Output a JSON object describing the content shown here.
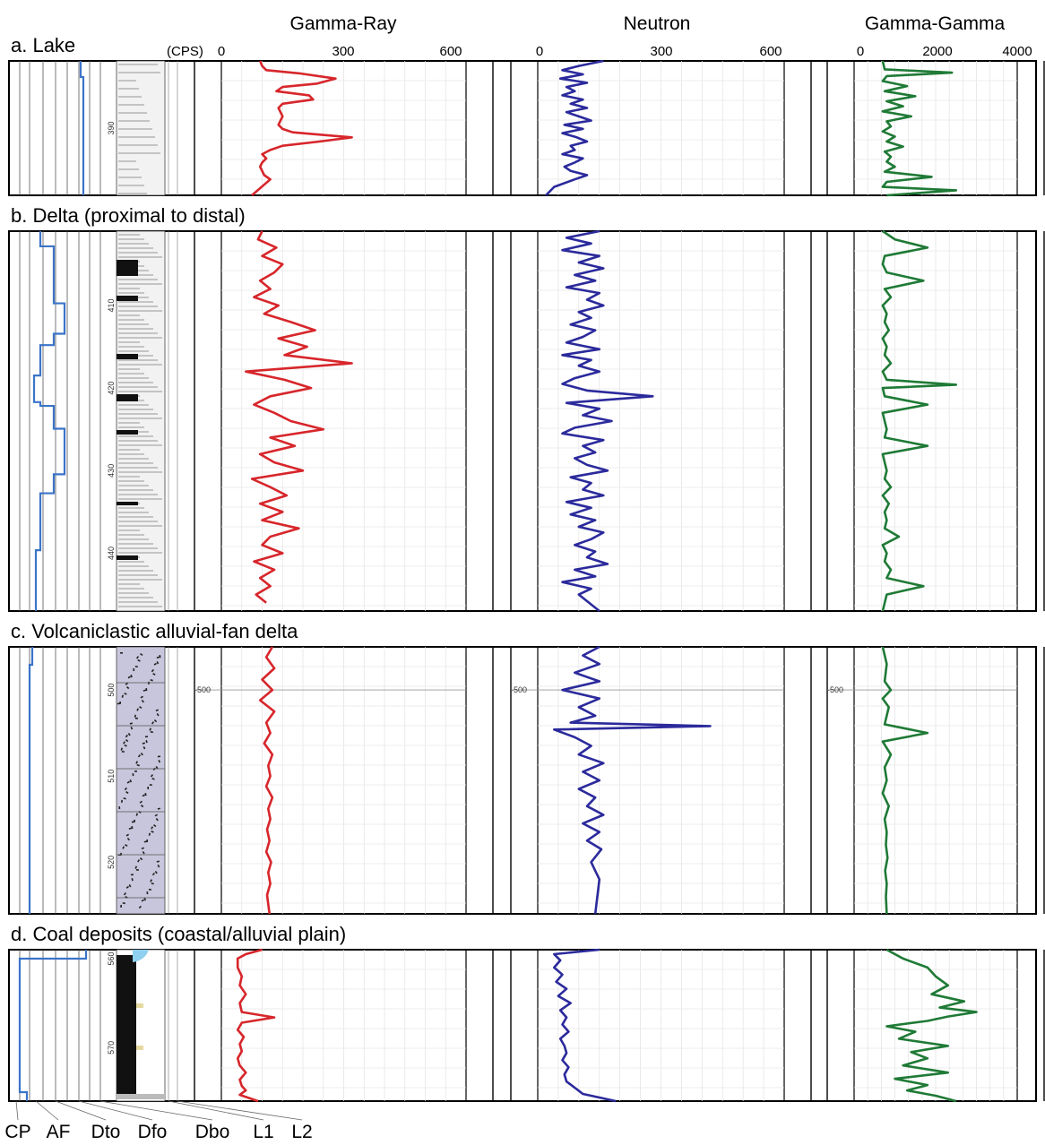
{
  "figure_type": "multi-panel well-log composite",
  "colors": {
    "gamma_ray": "#d7262b",
    "neutron": "#2b2a9c",
    "gamma_gamma": "#1f7a36",
    "facies_curve": "#3b74c8",
    "volcanic_fill": "#c7c6dc",
    "coal_fill": "#111111",
    "water_cap": "#8fd0ee"
  },
  "track_headers": {
    "cps_label": "(CPS)",
    "gamma_ray": {
      "title": "Gamma-Ray",
      "ticks": [
        "0",
        "300",
        "600"
      ]
    },
    "neutron": {
      "title": "Neutron",
      "ticks": [
        "0",
        "300",
        "600"
      ]
    },
    "gamma_gamma": {
      "title": "Gamma-Gamma",
      "ticks": [
        "0",
        "2000",
        "4000"
      ]
    }
  },
  "facies_codes": [
    "CP",
    "AF",
    "Dto",
    "Dfo",
    "Dbo",
    "L1",
    "L2"
  ],
  "depth_marker": "-500",
  "sections": [
    {
      "title": "a. Lake",
      "depth_labels": [
        "390"
      ]
    },
    {
      "title": "b. Delta (proximal to distal)",
      "depth_labels": [
        "410",
        "420",
        "430",
        "440"
      ]
    },
    {
      "title": "c. Volcaniclastic alluvial-fan delta",
      "depth_labels": [
        "500",
        "510",
        "520"
      ]
    },
    {
      "title": "d. Coal deposits (coastal/alluvial plain)",
      "depth_labels": [
        "560",
        "570"
      ]
    }
  ],
  "chart_data": [
    {
      "type": "line",
      "title": "a. Lake",
      "depth_unit": "m",
      "depth_range": [
        382,
        398
      ],
      "series": [
        {
          "name": "Gamma-Ray",
          "xlim": [
            0,
            600
          ],
          "x": [
            95,
            100,
            110,
            195,
            280,
            235,
            150,
            135,
            215,
            225,
            150,
            140,
            145,
            150,
            145,
            140,
            150,
            175,
            320,
            240,
            150,
            120,
            100,
            110,
            100,
            95,
            100,
            105,
            120,
            75
          ],
          "y": [
            382,
            382.6,
            383.1,
            383.5,
            384.1,
            384.7,
            385.1,
            385.6,
            386.1,
            386.6,
            387.1,
            387.6,
            388.1,
            388.6,
            389.1,
            389.6,
            390.1,
            390.5,
            391.1,
            391.6,
            392.1,
            392.6,
            393.1,
            393.6,
            394.1,
            394.6,
            395.1,
            395.6,
            396.1,
            398
          ]
        },
        {
          "name": "Neutron",
          "xlim": [
            0,
            600
          ],
          "x": [
            160,
            100,
            60,
            110,
            55,
            120,
            70,
            90,
            60,
            110,
            80,
            120,
            70,
            100,
            130,
            65,
            110,
            60,
            95,
            120,
            80,
            90,
            60,
            110,
            90,
            65,
            80,
            120,
            90,
            40,
            20
          ],
          "y": [
            382,
            382.6,
            383.1,
            383.6,
            384.1,
            384.6,
            385.1,
            385.6,
            386.1,
            386.6,
            387.1,
            387.6,
            388.1,
            388.6,
            389.1,
            389.6,
            390.1,
            390.6,
            391.1,
            391.6,
            392.1,
            392.6,
            393.1,
            393.6,
            394.1,
            394.6,
            395.1,
            395.6,
            396.1,
            397,
            398
          ]
        },
        {
          "name": "Gamma-Gamma",
          "xlim": [
            0,
            4000
          ],
          "x": [
            700,
            750,
            2400,
            800,
            700,
            1300,
            750,
            1500,
            800,
            1200,
            700,
            1400,
            800,
            900,
            700,
            1000,
            800,
            1200,
            750,
            900,
            800,
            1000,
            750,
            1900,
            800,
            700,
            2500,
            800
          ],
          "y": [
            382,
            383,
            383.4,
            383.8,
            384.4,
            385,
            385.6,
            386.2,
            386.8,
            387.4,
            388,
            388.6,
            389.2,
            389.8,
            390.4,
            391,
            391.6,
            392.2,
            392.8,
            393.4,
            394,
            394.6,
            395.2,
            395.8,
            396.4,
            397,
            397.4,
            398
          ]
        }
      ]
    },
    {
      "type": "line",
      "title": "b. Delta (proximal to distal)",
      "depth_unit": "m",
      "depth_range": [
        401,
        447
      ],
      "series": [
        {
          "name": "Gamma-Ray",
          "xlim": [
            0,
            600
          ],
          "x": [
            100,
            90,
            135,
            100,
            150,
            130,
            95,
            120,
            80,
            140,
            105,
            170,
            230,
            140,
            210,
            155,
            320,
            60,
            155,
            220,
            120,
            80,
            130,
            170,
            250,
            120,
            180,
            95,
            130,
            200,
            75,
            120,
            160,
            95,
            150,
            100,
            190,
            120,
            100,
            150,
            80,
            130,
            95,
            120,
            85,
            110
          ],
          "y": [
            401,
            402,
            403,
            404,
            405,
            406,
            407,
            408,
            409,
            410,
            411,
            412,
            413,
            414,
            415,
            416,
            417,
            418,
            419,
            420,
            421,
            422,
            423,
            424,
            425,
            426,
            427,
            428,
            429,
            430,
            431,
            432,
            433,
            434,
            435,
            436,
            437,
            438,
            439,
            440,
            441,
            442,
            443,
            444,
            445,
            446
          ]
        },
        {
          "name": "Neutron",
          "xlim": [
            0,
            600
          ],
          "x": [
            150,
            70,
            130,
            60,
            150,
            100,
            160,
            90,
            140,
            70,
            150,
            120,
            160,
            100,
            130,
            80,
            140,
            110,
            70,
            150,
            60,
            130,
            100,
            150,
            90,
            60,
            120,
            280,
            70,
            150,
            110,
            180,
            90,
            60,
            160,
            110,
            140,
            90,
            120,
            170,
            80,
            130,
            110,
            160,
            70,
            130,
            80,
            140,
            100,
            160,
            130,
            90,
            140,
            120,
            170,
            90,
            140,
            60,
            130,
            100,
            150
          ],
          "y": [
            401,
            401.8,
            402.5,
            403.3,
            404,
            404.8,
            405.5,
            406.3,
            407,
            407.8,
            408.5,
            409.3,
            410,
            410.8,
            411.5,
            412.3,
            413,
            413.8,
            414.5,
            415.3,
            416,
            416.6,
            417.3,
            418,
            418.8,
            419.5,
            420.3,
            421,
            421.8,
            422.5,
            423.3,
            424,
            424.8,
            425.5,
            426.3,
            427,
            427.8,
            428.5,
            429.3,
            430,
            430.8,
            431.5,
            432.3,
            433,
            433.8,
            434.5,
            435.3,
            436,
            436.8,
            437.5,
            438.3,
            439,
            439.8,
            440.5,
            441.3,
            442,
            442.8,
            443.5,
            444.3,
            445,
            447
          ]
        },
        {
          "name": "Gamma-Gamma",
          "xlim": [
            0,
            4000
          ],
          "x": [
            700,
            1000,
            1800,
            750,
            700,
            800,
            1700,
            750,
            900,
            700,
            800,
            750,
            850,
            700,
            800,
            750,
            900,
            700,
            800,
            2500,
            700,
            750,
            1800,
            700,
            750,
            800,
            750,
            1800,
            700,
            750,
            800,
            750,
            900,
            700,
            850,
            750,
            800,
            750,
            1100,
            700,
            800,
            750,
            900,
            800,
            1700,
            800,
            700
          ],
          "y": [
            401,
            402,
            403,
            404,
            405,
            406,
            407,
            408,
            409,
            410,
            411,
            412,
            413,
            414,
            415,
            416,
            417,
            418,
            419,
            419.6,
            420,
            421,
            422,
            423,
            424,
            425,
            426,
            427,
            428,
            429,
            430,
            431,
            432,
            433,
            434,
            435,
            436,
            437,
            438,
            439,
            440,
            441,
            442,
            443,
            444,
            445,
            447
          ]
        }
      ]
    },
    {
      "type": "line",
      "title": "c. Volcaniclastic alluvial-fan delta",
      "depth_unit": "m",
      "depth_range": [
        495,
        526
      ],
      "series": [
        {
          "name": "Gamma-Ray",
          "xlim": [
            0,
            600
          ],
          "x": [
            125,
            110,
            130,
            100,
            125,
            95,
            130,
            110,
            120,
            105,
            125,
            115,
            120,
            110,
            125,
            115,
            120,
            112,
            118,
            110,
            122,
            115,
            120,
            112,
            118
          ],
          "y": [
            495,
            496.2,
            497.5,
            498.8,
            500,
            501.2,
            502.5,
            503.8,
            505,
            506.2,
            507.5,
            508.8,
            510,
            511.2,
            512.5,
            513.8,
            515,
            516.2,
            517.5,
            518.8,
            520,
            521.2,
            522.5,
            523.8,
            526
          ]
        },
        {
          "name": "Neutron",
          "xlim": [
            0,
            600
          ],
          "x": [
            150,
            110,
            150,
            90,
            150,
            60,
            150,
            100,
            140,
            80,
            420,
            40,
            90,
            130,
            100,
            160,
            110,
            150,
            100,
            140,
            120,
            160,
            110,
            150,
            120,
            155,
            130,
            150,
            140
          ],
          "y": [
            495,
            496,
            497,
            498,
            499,
            500,
            501,
            502,
            503,
            503.8,
            504.2,
            504.6,
            505.5,
            506.5,
            507.5,
            508.5,
            509.5,
            510.5,
            511.5,
            512.5,
            513.5,
            514.5,
            515.5,
            516.5,
            517.5,
            518.5,
            520,
            522,
            526
          ]
        },
        {
          "name": "Gamma-Gamma",
          "xlim": [
            0,
            4000
          ],
          "x": [
            700,
            800,
            750,
            900,
            700,
            850,
            750,
            1800,
            700,
            900,
            750,
            800,
            700,
            850,
            750,
            800,
            780,
            820,
            760,
            800,
            780,
            800
          ],
          "y": [
            495,
            497,
            499,
            500,
            501,
            502,
            504,
            505,
            506,
            507.5,
            509,
            510.5,
            512,
            513.5,
            515,
            516.5,
            518,
            519.5,
            521,
            522.5,
            524,
            526
          ]
        }
      ]
    },
    {
      "type": "line",
      "title": "d. Coal deposits (coastal/alluvial plain)",
      "depth_unit": "m",
      "depth_range": [
        559,
        576
      ],
      "series": [
        {
          "name": "Gamma-Ray",
          "xlim": [
            0,
            600
          ],
          "x": [
            100,
            60,
            40,
            40,
            50,
            45,
            60,
            45,
            50,
            130,
            50,
            40,
            55,
            45,
            50,
            40,
            45,
            60,
            45,
            50,
            60,
            45,
            90
          ],
          "y": [
            559,
            559.5,
            560,
            561,
            562,
            563,
            564,
            565,
            566,
            566.6,
            567.2,
            568,
            568.8,
            569.6,
            570.4,
            571.2,
            572,
            572.8,
            573.6,
            574.3,
            574.8,
            575.3,
            576
          ]
        },
        {
          "name": "Neutron",
          "xlim": [
            0,
            600
          ],
          "x": [
            150,
            40,
            55,
            40,
            60,
            45,
            70,
            50,
            80,
            55,
            70,
            60,
            75,
            55,
            65,
            70,
            60,
            75,
            65,
            70,
            110,
            190
          ],
          "y": [
            559,
            559.5,
            560.2,
            561,
            561.8,
            562.6,
            563.4,
            564.2,
            565,
            565.8,
            566.6,
            567.4,
            568.2,
            569,
            569.8,
            570.6,
            571.4,
            572.2,
            573,
            573.8,
            575.2,
            576
          ]
        },
        {
          "name": "Gamma-Gamma",
          "xlim": [
            0,
            4000
          ],
          "x": [
            800,
            1200,
            1800,
            2000,
            2300,
            1900,
            2700,
            2100,
            3000,
            2300,
            1800,
            800,
            1500,
            1100,
            2300,
            1400,
            1800,
            1200,
            2300,
            1000,
            1800,
            1300,
            2000,
            2500
          ],
          "y": [
            559,
            560,
            561,
            562,
            563,
            564,
            564.8,
            565.5,
            566,
            566.5,
            567,
            567.6,
            568.2,
            569,
            569.8,
            570.5,
            571.2,
            572,
            572.8,
            573.5,
            574.2,
            574.8,
            575.4,
            576
          ]
        }
      ]
    }
  ]
}
